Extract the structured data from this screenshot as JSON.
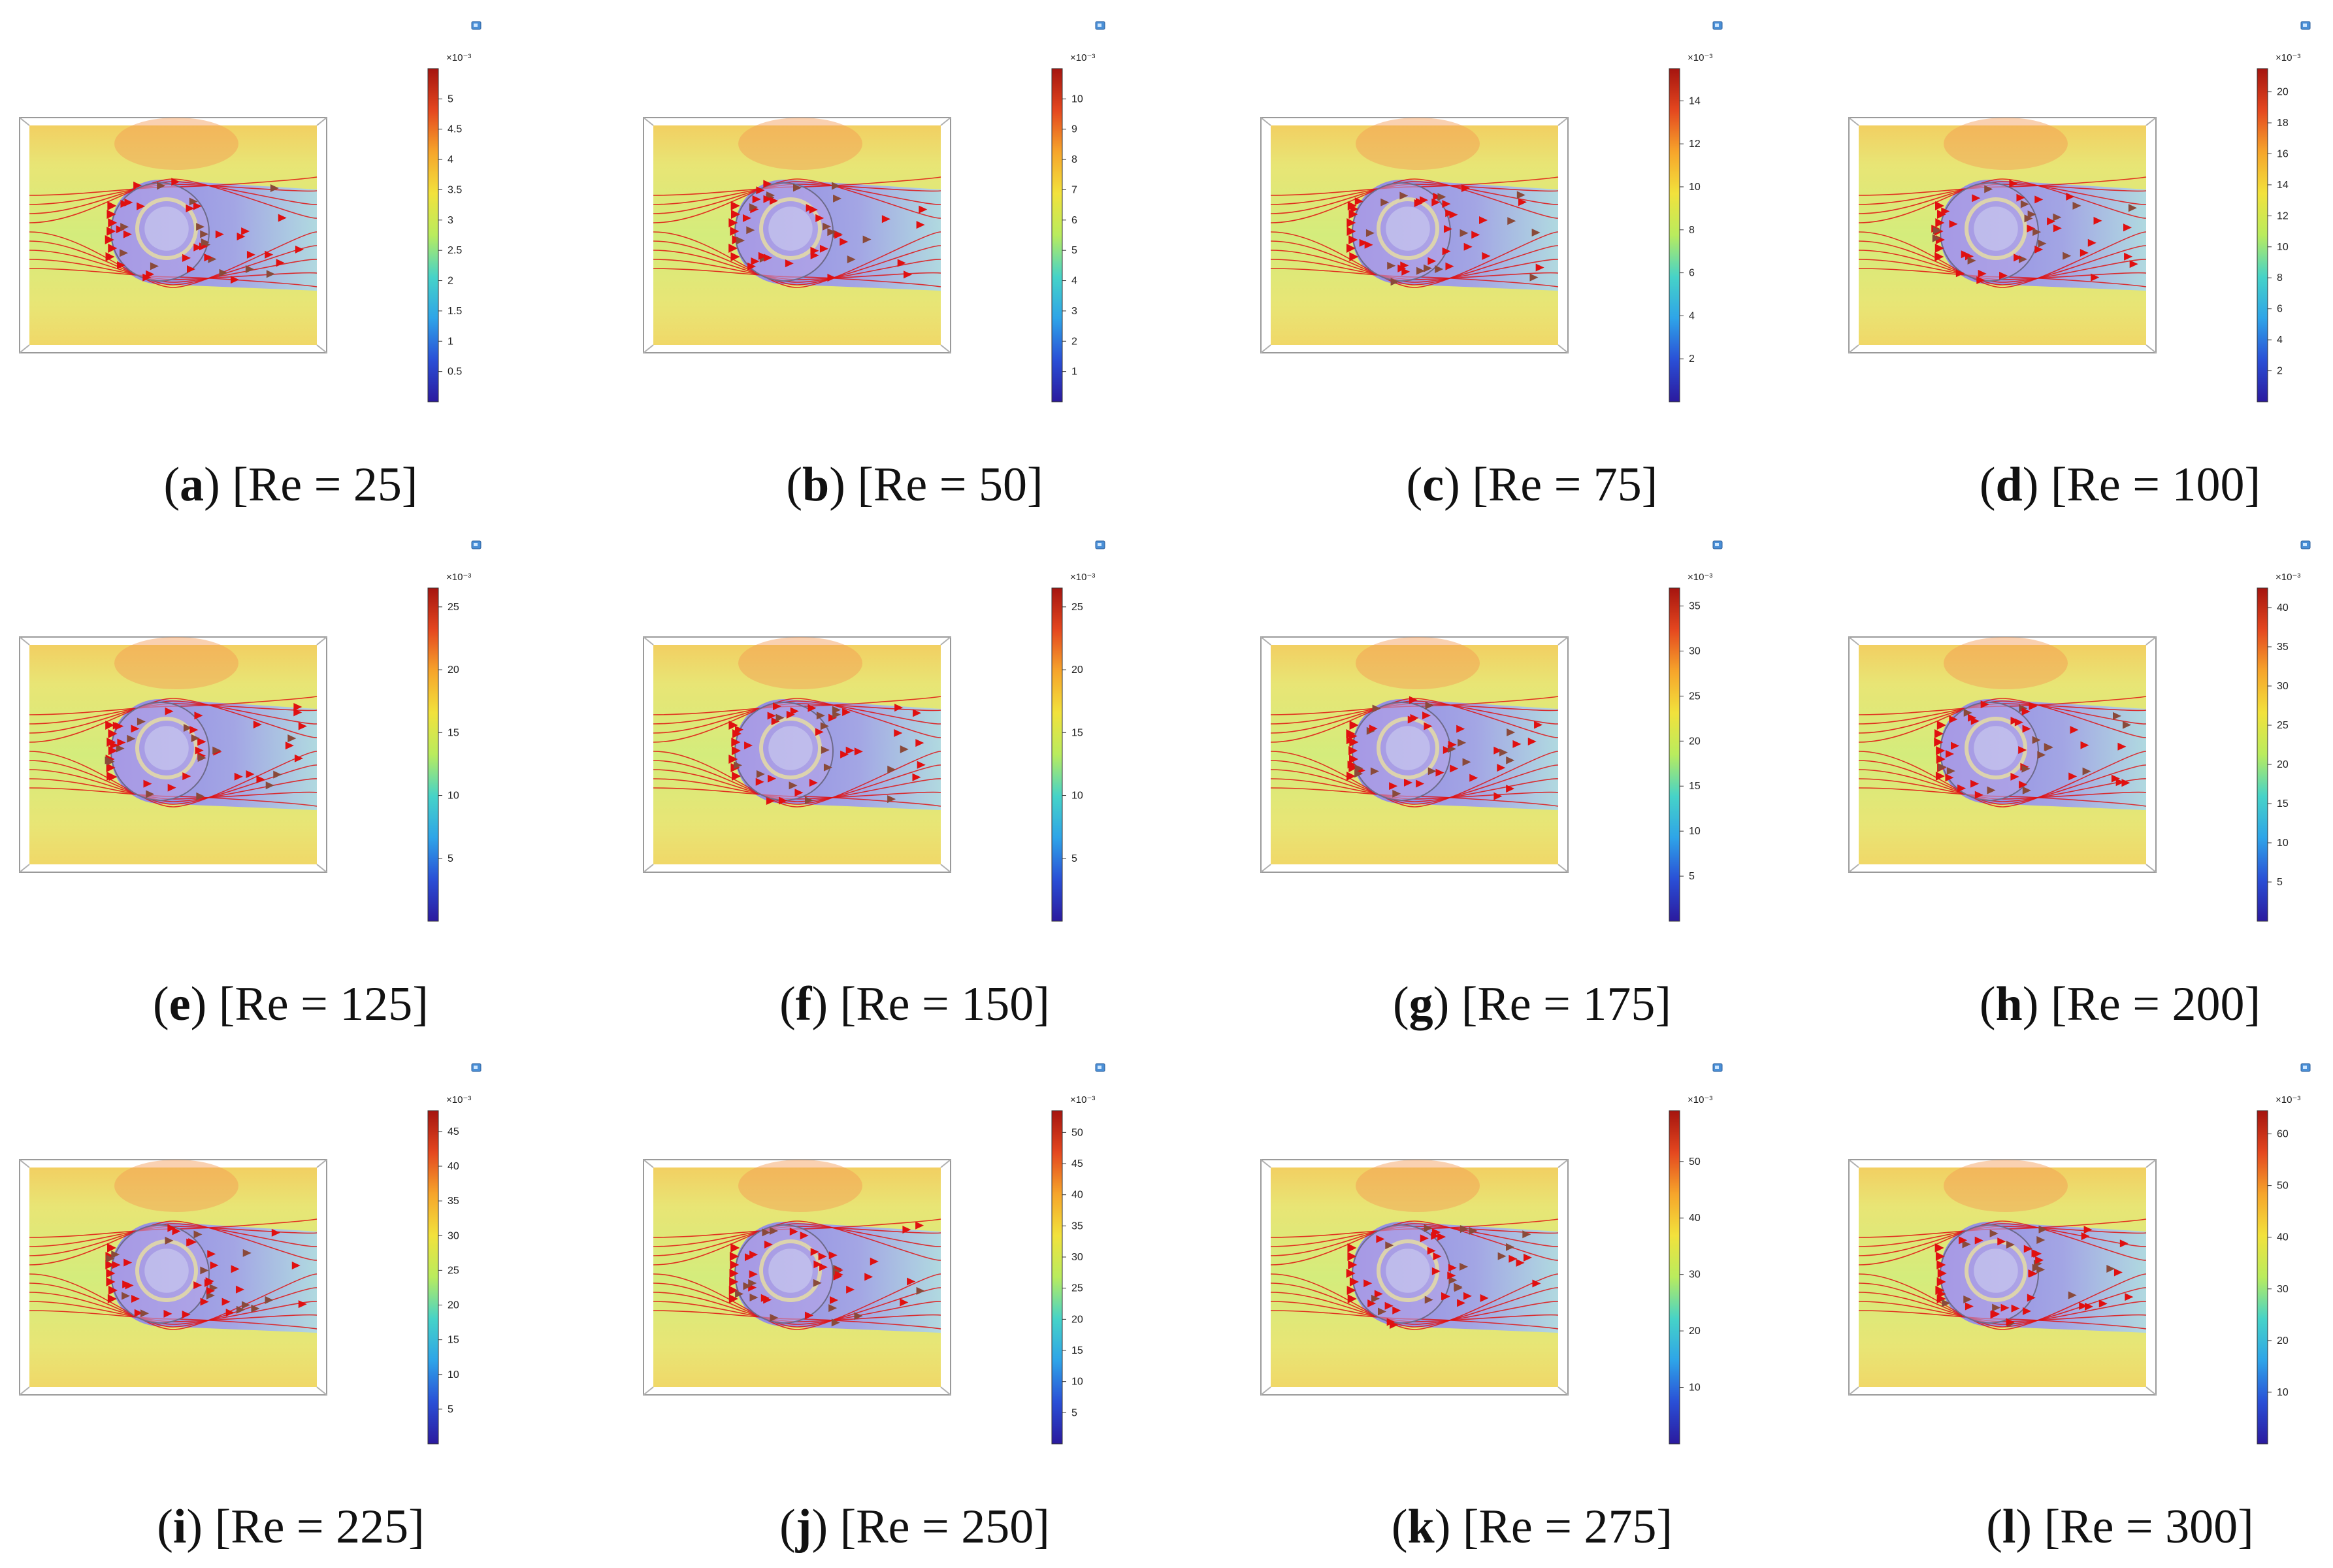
{
  "figure": {
    "colormap": [
      "#2b1a9e",
      "#2a4fd6",
      "#2ea4e8",
      "#46d3c8",
      "#b9ec5e",
      "#f2e23c",
      "#f6a52b",
      "#e4471f",
      "#a5140f"
    ],
    "arrow_color": "#e01010",
    "panels": [
      {
        "letter": "a",
        "re_text": "[Re = 25]",
        "multiplier": "×10⁻³",
        "ticks": [
          "5",
          "4.5",
          "4",
          "3.5",
          "3",
          "2.5",
          "2",
          "1.5",
          "1",
          "0.5"
        ],
        "colorbar_range": [
          0,
          5.5
        ]
      },
      {
        "letter": "b",
        "re_text": "[Re = 50]",
        "multiplier": "×10⁻³",
        "ticks": [
          "10",
          "9",
          "8",
          "7",
          "6",
          "5",
          "4",
          "3",
          "2",
          "1"
        ],
        "colorbar_range": [
          0,
          11
        ]
      },
      {
        "letter": "c",
        "re_text": "[Re = 75]",
        "multiplier": "×10⁻³",
        "ticks": [
          "14",
          "12",
          "10",
          "8",
          "6",
          "4",
          "2"
        ],
        "colorbar_range": [
          0,
          15.5
        ]
      },
      {
        "letter": "d",
        "re_text": "[Re = 100]",
        "multiplier": "×10⁻³",
        "ticks": [
          "20",
          "18",
          "16",
          "14",
          "12",
          "10",
          "8",
          "6",
          "4",
          "2"
        ],
        "colorbar_range": [
          0,
          21.5
        ]
      },
      {
        "letter": "e",
        "re_text": "[Re = 125]",
        "multiplier": "×10⁻³",
        "ticks": [
          "25",
          "20",
          "15",
          "10",
          "5"
        ],
        "colorbar_range": [
          0,
          26.5
        ]
      },
      {
        "letter": "f",
        "re_text": "[Re = 150]",
        "multiplier": "×10⁻³",
        "ticks": [
          "25",
          "20",
          "15",
          "10",
          "5"
        ],
        "colorbar_range": [
          0,
          26.5
        ]
      },
      {
        "letter": "g",
        "re_text": "[Re = 175]",
        "multiplier": "×10⁻³",
        "ticks": [
          "35",
          "30",
          "25",
          "20",
          "15",
          "10",
          "5"
        ],
        "colorbar_range": [
          0,
          37
        ]
      },
      {
        "letter": "h",
        "re_text": "[Re = 200]",
        "multiplier": "×10⁻³",
        "ticks": [
          "40",
          "35",
          "30",
          "25",
          "20",
          "15",
          "10",
          "5"
        ],
        "colorbar_range": [
          0,
          42.5
        ]
      },
      {
        "letter": "i",
        "re_text": "[Re = 225]",
        "multiplier": "×10⁻³",
        "ticks": [
          "45",
          "40",
          "35",
          "30",
          "25",
          "20",
          "15",
          "10",
          "5"
        ],
        "colorbar_range": [
          0,
          48
        ]
      },
      {
        "letter": "j",
        "re_text": "[Re = 250]",
        "multiplier": "×10⁻³",
        "ticks": [
          "50",
          "45",
          "40",
          "35",
          "30",
          "25",
          "20",
          "15",
          "10",
          "5"
        ],
        "colorbar_range": [
          0,
          53.5
        ]
      },
      {
        "letter": "k",
        "re_text": "[Re = 275]",
        "multiplier": "×10⁻³",
        "ticks": [
          "50",
          "40",
          "30",
          "20",
          "10"
        ],
        "colorbar_range": [
          0,
          59
        ]
      },
      {
        "letter": "l",
        "re_text": "[Re = 300]",
        "multiplier": "×10⁻³",
        "ticks": [
          "60",
          "50",
          "40",
          "30",
          "20",
          "10"
        ],
        "colorbar_range": [
          0,
          64.5
        ]
      }
    ]
  }
}
